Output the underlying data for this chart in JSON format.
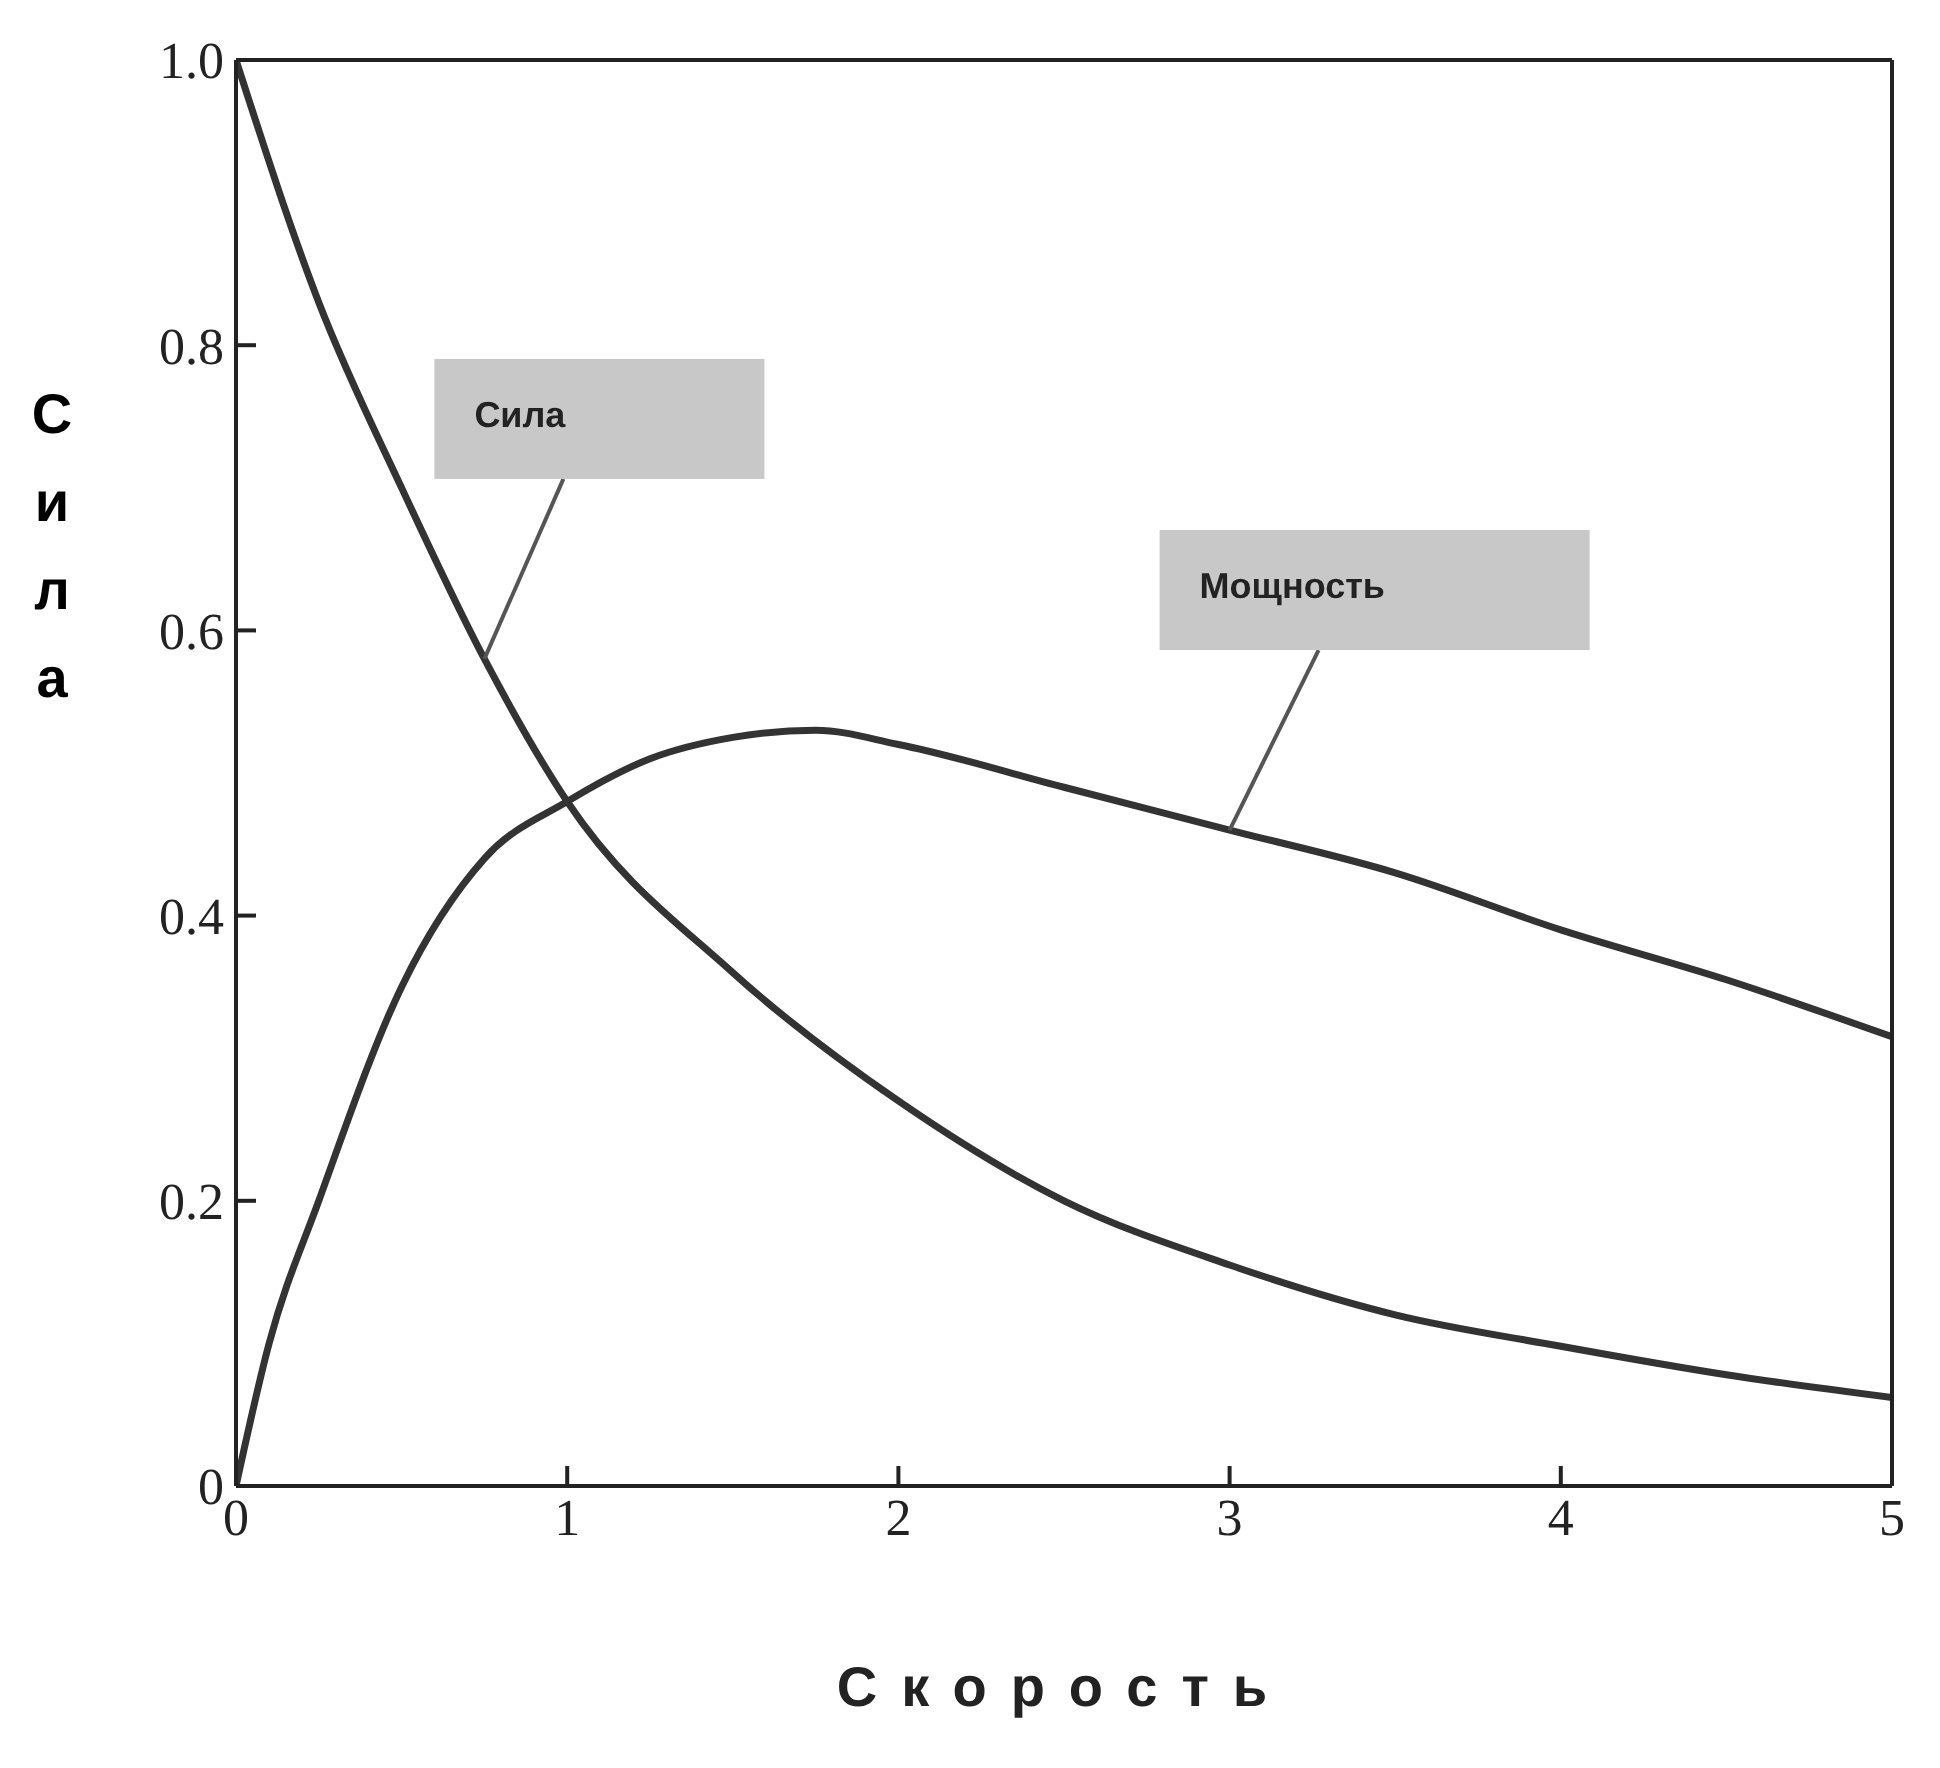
{
  "chart_data": {
    "type": "line",
    "xlabel": "Скорость",
    "ylabel": "Сила",
    "xlim": [
      0,
      5
    ],
    "xticks": [
      0,
      1,
      2,
      3,
      4,
      5
    ],
    "ylim": [
      0,
      1
    ],
    "yticks": [
      0,
      0.2,
      0.4,
      0.6,
      0.8,
      {
        "value": 1,
        "label": "1.0"
      }
    ],
    "grid": false,
    "marker": "none",
    "line_style": "solid",
    "series": [
      {
        "name": "Сила",
        "color": "#333333",
        "x": [
          0,
          0.25,
          0.5,
          0.75,
          1,
          1.5,
          2,
          2.5,
          3,
          3.5,
          4,
          4.5,
          5
        ],
        "values": [
          1,
          0.83,
          0.7,
          0.58,
          0.48,
          0.36,
          0.27,
          0.2,
          0.155,
          0.12,
          0.098,
          0.078,
          0.062
        ]
      },
      {
        "name": "Мощность",
        "color": "#333333",
        "x": [
          0,
          0.1,
          0.25,
          0.5,
          0.75,
          1,
          1.25,
          1.5,
          1.75,
          2,
          2.5,
          3,
          3.5,
          4,
          4.5,
          5
        ],
        "values": [
          0,
          0.1,
          0.2,
          0.35,
          0.44,
          0.48,
          0.51,
          0.525,
          0.53,
          0.52,
          0.49,
          0.46,
          0.43,
          0.39,
          0.355,
          0.315
        ]
      }
    ]
  }
}
